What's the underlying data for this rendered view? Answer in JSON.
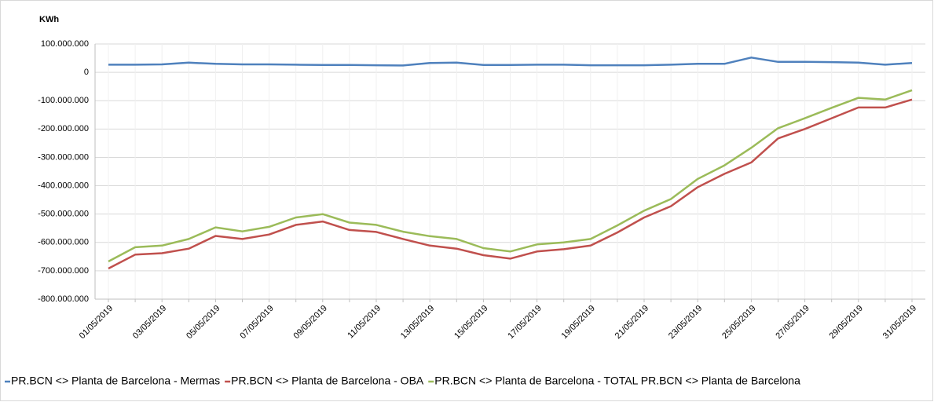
{
  "chart_data": {
    "type": "line",
    "y_label": "KWh",
    "categories": [
      "01/05/2019",
      null,
      "03/05/2019",
      null,
      "05/05/2019",
      null,
      "07/05/2019",
      null,
      "09/05/2019",
      null,
      "11/05/2019",
      null,
      "13/05/2019",
      null,
      "15/05/2019",
      null,
      "17/05/2019",
      null,
      "19/05/2019",
      null,
      "21/05/2019",
      null,
      "23/05/2019",
      null,
      "25/05/2019",
      null,
      "27/05/2019",
      null,
      "29/05/2019",
      null,
      "31/05/2019"
    ],
    "series": [
      {
        "name": "PR.BCN <> Planta de Barcelona - Mermas",
        "color": "#4f81bd",
        "values": [
          27000000,
          27000000,
          28000000,
          34000000,
          30000000,
          28000000,
          28000000,
          27000000,
          26000000,
          26000000,
          25000000,
          24000000,
          33000000,
          34000000,
          26000000,
          26000000,
          27000000,
          27000000,
          25000000,
          25000000,
          25000000,
          27000000,
          30000000,
          30000000,
          52000000,
          37000000,
          37000000,
          36000000,
          34000000,
          27000000,
          33000000
        ]
      },
      {
        "name": "PR.BCN <> Planta de Barcelona - OBA",
        "color": "#c0504d",
        "values": [
          -692000000,
          -643000000,
          -638000000,
          -622000000,
          -577000000,
          -588000000,
          -572000000,
          -538000000,
          -526000000,
          -556000000,
          -563000000,
          -588000000,
          -611000000,
          -622000000,
          -645000000,
          -657000000,
          -632000000,
          -624000000,
          -611000000,
          -565000000,
          -512000000,
          -472000000,
          -405000000,
          -358000000,
          -318000000,
          -233000000,
          -200000000,
          -162000000,
          -124000000,
          -124000000,
          -96000000
        ]
      },
      {
        "name": "PR.BCN <> Planta de Barcelona - TOTAL PR.BCN <> Planta de Barcelona",
        "color": "#9bbb59",
        "values": [
          -667000000,
          -617000000,
          -611000000,
          -588000000,
          -547000000,
          -561000000,
          -545000000,
          -512000000,
          -500000000,
          -530000000,
          -538000000,
          -562000000,
          -578000000,
          -588000000,
          -620000000,
          -632000000,
          -607000000,
          -600000000,
          -588000000,
          -540000000,
          -488000000,
          -447000000,
          -376000000,
          -328000000,
          -266000000,
          -197000000,
          -162000000,
          -125000000,
          -90000000,
          -96000000,
          -63000000
        ]
      }
    ],
    "ylim": [
      -800000000,
      100000000
    ],
    "yticks": [
      {
        "value": 100000000,
        "label": "100.000.000"
      },
      0,
      {
        "value": -100000000,
        "label": "-100.000.000"
      },
      {
        "value": -200000000,
        "label": "-200.000.000"
      },
      {
        "value": -300000000,
        "label": "-300.000.000"
      },
      {
        "value": -400000000,
        "label": "-400.000.000"
      },
      {
        "value": -500000000,
        "label": "-500.000.000"
      },
      {
        "value": -600000000,
        "label": "-600.000.000"
      },
      {
        "value": -700000000,
        "label": "-700.000.000"
      },
      {
        "value": -800000000,
        "label": "-800.000.000"
      }
    ],
    "grid": true,
    "legend": "bottom"
  }
}
